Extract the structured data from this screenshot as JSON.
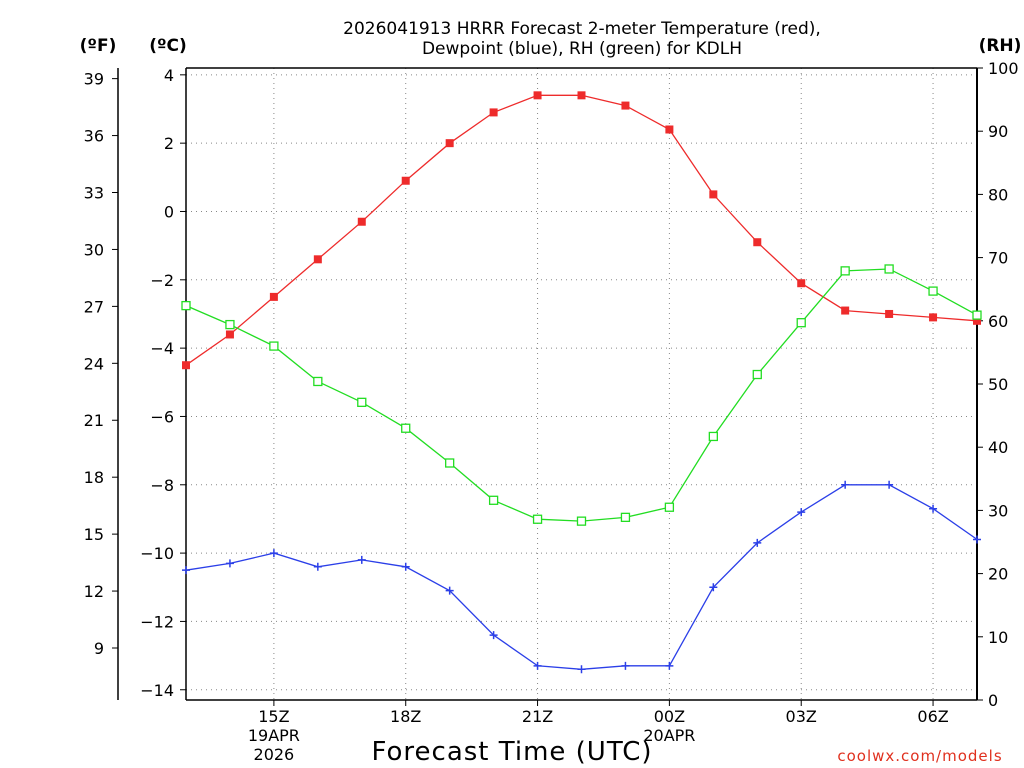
{
  "chart_data": {
    "type": "line",
    "title_line1": "2026041913 HRRR Forecast 2-meter Temperature (red),",
    "title_line2": "Dewpoint (blue), RH (green) for KDLH",
    "xlabel": "Forecast Time (UTC)",
    "credit": "coolwx.com/models",
    "units": {
      "fahrenheit": "(ºF)",
      "celsius": "(ºC)",
      "rh": "(RH)"
    },
    "x_hours": [
      13,
      14,
      15,
      16,
      17,
      18,
      19,
      20,
      21,
      22,
      23,
      24,
      25,
      26,
      27,
      28,
      29,
      30,
      31
    ],
    "xlim": [
      13,
      31
    ],
    "x_ticks": [
      {
        "hour": 15,
        "label": "15Z",
        "sub1": "19APR",
        "sub2": "2026"
      },
      {
        "hour": 18,
        "label": "18Z",
        "sub1": "",
        "sub2": ""
      },
      {
        "hour": 21,
        "label": "21Z",
        "sub1": "",
        "sub2": ""
      },
      {
        "hour": 24,
        "label": "00Z",
        "sub1": "20APR",
        "sub2": ""
      },
      {
        "hour": 27,
        "label": "03Z",
        "sub1": "",
        "sub2": ""
      },
      {
        "hour": 30,
        "label": "06Z",
        "sub1": "",
        "sub2": ""
      }
    ],
    "celsius_axis": {
      "range": [
        -14.3,
        4.2
      ],
      "ticks": [
        "4",
        "2",
        "0",
        "−2",
        "−4",
        "−6",
        "−8",
        "−10",
        "−12",
        "−14"
      ],
      "tick_values": [
        4,
        2,
        0,
        -2,
        -4,
        -6,
        -8,
        -10,
        -12,
        -14
      ]
    },
    "fahrenheit_axis": {
      "ticks": [
        "39",
        "36",
        "33",
        "30",
        "27",
        "24",
        "21",
        "18",
        "15",
        "12",
        "9"
      ],
      "tick_values": [
        39,
        36,
        33,
        30,
        27,
        24,
        21,
        18,
        15,
        12,
        9
      ]
    },
    "rh_axis": {
      "range": [
        0,
        100
      ],
      "ticks": [
        "100",
        "90",
        "80",
        "70",
        "60",
        "50",
        "40",
        "30",
        "20",
        "10",
        "0"
      ],
      "tick_values": [
        100,
        90,
        80,
        70,
        60,
        50,
        40,
        30,
        20,
        10,
        0
      ]
    },
    "series": [
      {
        "name": "Temperature",
        "units": "C",
        "color": "#ee2b2b",
        "marker": "filled-square",
        "values": [
          -4.5,
          -3.6,
          -2.5,
          -1.4,
          -0.3,
          0.9,
          2.0,
          2.9,
          3.4,
          3.4,
          3.1,
          2.4,
          0.5,
          -0.9,
          -2.1,
          -2.9,
          -3.0,
          -3.1,
          -3.2
        ]
      },
      {
        "name": "Dewpoint",
        "units": "C",
        "color": "#2b3fe8",
        "marker": "plus",
        "values": [
          -10.5,
          -10.3,
          -10.0,
          -10.4,
          -10.2,
          -10.4,
          -11.1,
          -12.4,
          -13.3,
          -13.4,
          -13.3,
          -13.3,
          -11.0,
          -9.7,
          -8.8,
          -8.0,
          -8.0,
          -8.7,
          -9.6
        ]
      },
      {
        "name": "RH",
        "units": "%",
        "color": "#22dd22",
        "marker": "open-square",
        "values": [
          62.4,
          59.4,
          56.0,
          50.4,
          47.1,
          43.0,
          37.5,
          31.6,
          28.6,
          28.3,
          28.9,
          30.5,
          41.7,
          51.5,
          59.7,
          67.9,
          68.2,
          64.7,
          60.9
        ]
      }
    ]
  }
}
